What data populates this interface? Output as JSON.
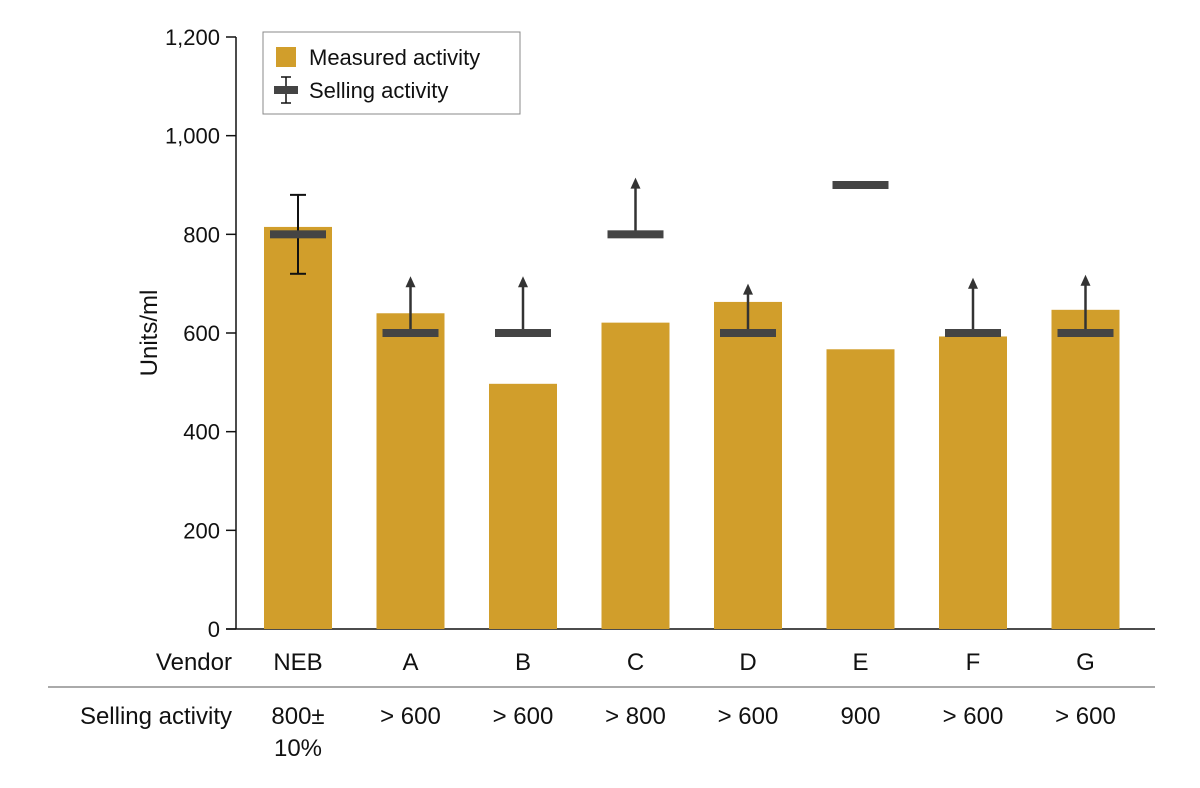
{
  "chart_data": {
    "type": "bar",
    "ylabel": "Units/ml",
    "ylim": [
      0,
      1200
    ],
    "yticks": [
      0,
      200,
      400,
      600,
      800,
      1000,
      1200
    ],
    "ytick_labels": [
      "0",
      "200",
      "400",
      "600",
      "800",
      "1,000",
      "1,200"
    ],
    "categories": [
      "NEB",
      "A",
      "B",
      "C",
      "D",
      "E",
      "F",
      "G"
    ],
    "category_row_label": "Vendor",
    "series": [
      {
        "name": "Measured activity",
        "color": "#D19E2B",
        "values": [
          815,
          640,
          497,
          621,
          663,
          567,
          593,
          647
        ]
      },
      {
        "name": "Selling activity",
        "color": "#444444",
        "values": [
          800,
          600,
          600,
          800,
          600,
          900,
          600,
          600
        ],
        "marker": [
          "error-bar",
          "arrow",
          "arrow",
          "arrow",
          "arrow",
          "none",
          "arrow",
          "arrow"
        ],
        "error_range": [
          720,
          880
        ],
        "arrow_top": [
          null,
          715,
          715,
          915,
          700,
          null,
          712,
          718
        ]
      }
    ],
    "table": {
      "row_label": "Selling activity",
      "values": [
        [
          "800±",
          "10%"
        ],
        [
          "> 600"
        ],
        [
          "> 600"
        ],
        [
          "> 800"
        ],
        [
          "> 600"
        ],
        [
          "900"
        ],
        [
          "> 600"
        ],
        [
          "> 600"
        ]
      ]
    },
    "legend": {
      "position": "top-left",
      "items": [
        {
          "label": "Measured activity",
          "icon": "swatch-icon"
        },
        {
          "label": "Selling activity",
          "icon": "error-bar-icon"
        }
      ]
    },
    "grid": false
  }
}
